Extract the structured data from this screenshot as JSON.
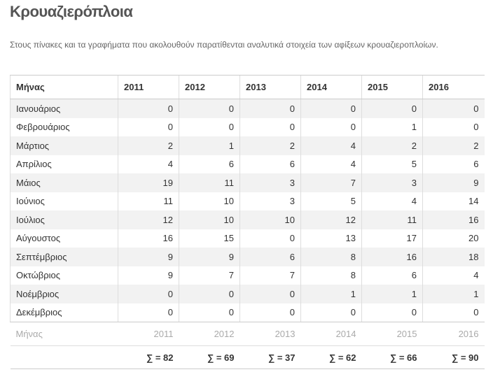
{
  "page": {
    "title": "Κρουαζιερόπλοια",
    "subtitle": "Στους πίνακες και τα γραφήματα που ακολουθούν παρατίθενται αναλυτικά στοιχεία των αφίξεων κρουαζιεροπλοίων."
  },
  "table": {
    "header": [
      "Μήνας",
      "2011",
      "2012",
      "2013",
      "2014",
      "2015",
      "2016"
    ],
    "rows": [
      {
        "month": "Ιανουάριος",
        "values": [
          "0",
          "0",
          "0",
          "0",
          "0",
          "0"
        ]
      },
      {
        "month": "Φεβρουάριος",
        "values": [
          "0",
          "0",
          "0",
          "0",
          "1",
          "0"
        ]
      },
      {
        "month": "Μάρτιος",
        "values": [
          "2",
          "1",
          "2",
          "4",
          "2",
          "2"
        ]
      },
      {
        "month": "Απρίλιος",
        "values": [
          "4",
          "6",
          "6",
          "4",
          "5",
          "6"
        ]
      },
      {
        "month": "Μάιος",
        "values": [
          "19",
          "11",
          "3",
          "7",
          "3",
          "9"
        ]
      },
      {
        "month": "Ιούνιος",
        "values": [
          "11",
          "10",
          "3",
          "5",
          "4",
          "14"
        ]
      },
      {
        "month": "Ιούλιος",
        "values": [
          "12",
          "10",
          "10",
          "12",
          "11",
          "16"
        ]
      },
      {
        "month": "Αύγουστος",
        "values": [
          "16",
          "15",
          "0",
          "13",
          "17",
          "20"
        ]
      },
      {
        "month": "Σεπτέμβριος",
        "values": [
          "9",
          "9",
          "6",
          "8",
          "16",
          "18"
        ]
      },
      {
        "month": "Οκτώβριος",
        "values": [
          "9",
          "7",
          "7",
          "8",
          "6",
          "4"
        ]
      },
      {
        "month": "Νοέμβριος",
        "values": [
          "0",
          "0",
          "0",
          "1",
          "1",
          "1"
        ]
      },
      {
        "month": "Δεκέμβριος",
        "values": [
          "0",
          "0",
          "0",
          "0",
          "0",
          "0"
        ]
      }
    ],
    "footer_header": [
      "Μήνας",
      "2011",
      "2012",
      "2013",
      "2014",
      "2015",
      "2016"
    ],
    "sums": [
      "∑ = 82",
      "∑ = 69",
      "∑ = 37",
      "∑ = 62",
      "∑ = 66",
      "∑ = 90"
    ]
  }
}
